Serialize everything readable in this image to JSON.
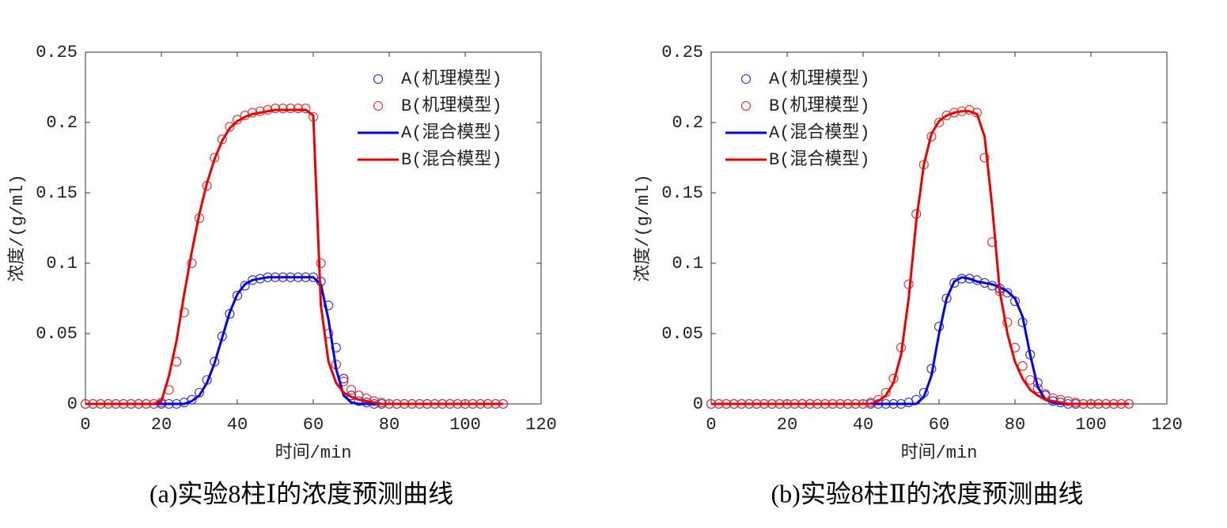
{
  "chart_data": [
    {
      "type": "line",
      "caption": "(a)实验8柱Ⅰ的浓度预测曲线",
      "x_label": "时间/min",
      "y_label": "浓度/(g/ml)",
      "legend": "northeast",
      "xlim": [
        0,
        120
      ],
      "xticks": [
        0,
        20,
        40,
        60,
        80,
        100,
        120
      ],
      "ylim": [
        0,
        0.25
      ],
      "yticks": [
        0,
        0.05,
        0.1,
        0.15,
        0.2,
        0.25
      ],
      "x": [
        0,
        2,
        4,
        6,
        8,
        10,
        12,
        14,
        16,
        18,
        20,
        22,
        24,
        26,
        28,
        30,
        32,
        34,
        36,
        38,
        40,
        42,
        44,
        46,
        48,
        50,
        52,
        54,
        56,
        58,
        60,
        62,
        64,
        66,
        68,
        70,
        72,
        74,
        76,
        78,
        80,
        82,
        84,
        86,
        88,
        90,
        92,
        94,
        96,
        98,
        100,
        102,
        104,
        106,
        108,
        110
      ],
      "series": [
        {
          "name": "A(机理模型)",
          "color": "#2a2ad0",
          "marker": "circle",
          "values": [
            0,
            0,
            0,
            0,
            0,
            0,
            0,
            0,
            0,
            0,
            0,
            0,
            0,
            0.001,
            0.003,
            0.008,
            0.017,
            0.03,
            0.048,
            0.064,
            0.077,
            0.084,
            0.088,
            0.089,
            0.09,
            0.09,
            0.09,
            0.09,
            0.09,
            0.09,
            0.09,
            0.087,
            0.07,
            0.04,
            0.018,
            0.006,
            0.002,
            0.001,
            0,
            0,
            0,
            0,
            0,
            0,
            0,
            0,
            0,
            0,
            0,
            0,
            0,
            0,
            0,
            0,
            0,
            0
          ]
        },
        {
          "name": "B(机理模型)",
          "color": "#e02a2a",
          "marker": "circle",
          "values": [
            0,
            0,
            0,
            0,
            0,
            0,
            0,
            0,
            0,
            0,
            0.001,
            0.01,
            0.03,
            0.065,
            0.1,
            0.132,
            0.155,
            0.175,
            0.188,
            0.197,
            0.202,
            0.205,
            0.207,
            0.208,
            0.209,
            0.21,
            0.21,
            0.21,
            0.21,
            0.21,
            0.204,
            0.1,
            0.05,
            0.028,
            0.016,
            0.01,
            0.006,
            0.004,
            0.002,
            0.001,
            0,
            0,
            0,
            0,
            0,
            0,
            0,
            0,
            0,
            0,
            0,
            0,
            0,
            0,
            0,
            0
          ]
        },
        {
          "name": "A(混合模型)",
          "color": "#0000ee",
          "marker": "line",
          "values": [
            0,
            0,
            0,
            0,
            0,
            0,
            0,
            0,
            0,
            0,
            0,
            0,
            0,
            0,
            0.002,
            0.006,
            0.015,
            0.029,
            0.047,
            0.065,
            0.078,
            0.085,
            0.088,
            0.089,
            0.09,
            0.09,
            0.09,
            0.09,
            0.09,
            0.09,
            0.09,
            0.085,
            0.06,
            0.025,
            0.006,
            0.001,
            0,
            0,
            0,
            0,
            0,
            0,
            0,
            0,
            0,
            0,
            0,
            0,
            0,
            0,
            0,
            0,
            0,
            0,
            0,
            0
          ]
        },
        {
          "name": "B(混合模型)",
          "color": "#ee0000",
          "marker": "line",
          "values": [
            0,
            0,
            0,
            0,
            0,
            0,
            0,
            0,
            0,
            0,
            0.002,
            0.02,
            0.045,
            0.078,
            0.108,
            0.135,
            0.157,
            0.174,
            0.187,
            0.196,
            0.201,
            0.204,
            0.206,
            0.207,
            0.208,
            0.209,
            0.209,
            0.209,
            0.209,
            0.209,
            0.205,
            0.07,
            0.03,
            0.015,
            0.008,
            0.005,
            0.003,
            0.002,
            0.001,
            0,
            0,
            0,
            0,
            0,
            0,
            0,
            0,
            0,
            0,
            0,
            0,
            0,
            0,
            0,
            0,
            0
          ]
        }
      ]
    },
    {
      "type": "line",
      "caption": "(b)实验8柱Ⅱ的浓度预测曲线",
      "x_label": "时间/min",
      "y_label": "浓度/(g/ml)",
      "legend": "northwest",
      "xlim": [
        0,
        120
      ],
      "xticks": [
        0,
        20,
        40,
        60,
        80,
        100,
        120
      ],
      "ylim": [
        0,
        0.25
      ],
      "yticks": [
        0,
        0.05,
        0.1,
        0.15,
        0.2,
        0.25
      ],
      "x": [
        0,
        2,
        4,
        6,
        8,
        10,
        12,
        14,
        16,
        18,
        20,
        22,
        24,
        26,
        28,
        30,
        32,
        34,
        36,
        38,
        40,
        42,
        44,
        46,
        48,
        50,
        52,
        54,
        56,
        58,
        60,
        62,
        64,
        66,
        68,
        70,
        72,
        74,
        76,
        78,
        80,
        82,
        84,
        86,
        88,
        90,
        92,
        94,
        96,
        98,
        100,
        102,
        104,
        106,
        108,
        110
      ],
      "series": [
        {
          "name": "A(机理模型)",
          "color": "#2a2ad0",
          "marker": "circle",
          "values": [
            0,
            0,
            0,
            0,
            0,
            0,
            0,
            0,
            0,
            0,
            0,
            0,
            0,
            0,
            0,
            0,
            0,
            0,
            0,
            0,
            0,
            0,
            0,
            0,
            0,
            0,
            0.001,
            0.003,
            0.008,
            0.025,
            0.055,
            0.075,
            0.086,
            0.089,
            0.089,
            0.088,
            0.086,
            0.084,
            0.082,
            0.079,
            0.073,
            0.058,
            0.035,
            0.015,
            0.006,
            0.002,
            0.001,
            0,
            0,
            0,
            0,
            0,
            0,
            0,
            0,
            0
          ]
        },
        {
          "name": "B(机理模型)",
          "color": "#e02a2a",
          "marker": "circle",
          "values": [
            0,
            0,
            0,
            0,
            0,
            0,
            0,
            0,
            0,
            0,
            0,
            0,
            0,
            0,
            0,
            0,
            0,
            0,
            0,
            0,
            0,
            0.001,
            0.003,
            0.008,
            0.018,
            0.04,
            0.085,
            0.135,
            0.17,
            0.19,
            0.2,
            0.205,
            0.207,
            0.208,
            0.209,
            0.207,
            0.175,
            0.115,
            0.08,
            0.058,
            0.04,
            0.027,
            0.017,
            0.011,
            0.007,
            0.004,
            0.003,
            0.002,
            0.001,
            0,
            0,
            0,
            0,
            0,
            0,
            0
          ]
        },
        {
          "name": "A(混合模型)",
          "color": "#0000ee",
          "marker": "line",
          "values": [
            0,
            0,
            0,
            0,
            0,
            0,
            0,
            0,
            0,
            0,
            0,
            0,
            0,
            0,
            0,
            0,
            0,
            0,
            0,
            0,
            0,
            0,
            0,
            0,
            0,
            0,
            0,
            0,
            0.005,
            0.02,
            0.05,
            0.075,
            0.087,
            0.09,
            0.089,
            0.087,
            0.086,
            0.085,
            0.083,
            0.08,
            0.075,
            0.062,
            0.035,
            0.012,
            0.003,
            0.001,
            0,
            0,
            0,
            0,
            0,
            0,
            0,
            0,
            0,
            0
          ]
        },
        {
          "name": "B(混合模型)",
          "color": "#ee0000",
          "marker": "line",
          "values": [
            0,
            0,
            0,
            0,
            0,
            0,
            0,
            0,
            0,
            0,
            0,
            0,
            0,
            0,
            0,
            0,
            0,
            0,
            0,
            0,
            0,
            0,
            0.002,
            0.006,
            0.015,
            0.035,
            0.075,
            0.13,
            0.17,
            0.192,
            0.201,
            0.205,
            0.207,
            0.208,
            0.208,
            0.206,
            0.19,
            0.14,
            0.08,
            0.05,
            0.03,
            0.018,
            0.01,
            0.006,
            0.003,
            0.002,
            0.001,
            0,
            0,
            0,
            0,
            0,
            0,
            0,
            0,
            0
          ]
        }
      ]
    }
  ]
}
